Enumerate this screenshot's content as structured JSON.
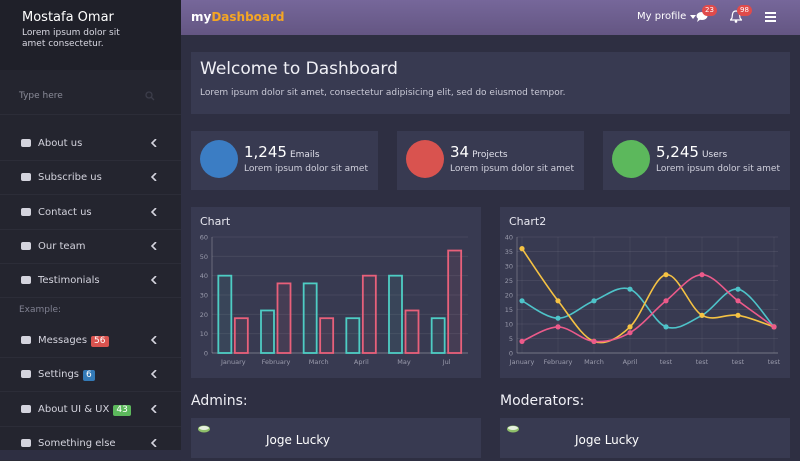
{
  "sidebar": {
    "user": {
      "name": "Mostafa Omar",
      "bio": "Lorem ipsum dolor sit amet consectetur."
    },
    "search_placeholder": "Type here",
    "menu": [
      {
        "label": "About us"
      },
      {
        "label": "Subscribe us"
      },
      {
        "label": "Contact us"
      },
      {
        "label": "Our team"
      },
      {
        "label": "Testimonials"
      }
    ],
    "section_label": "Example:",
    "menu2": [
      {
        "label": "Messages",
        "badge": 56
      },
      {
        "label": "Settings",
        "badge": 6
      },
      {
        "label": "About UI & UX",
        "badge": 43
      },
      {
        "label": "Something else"
      }
    ]
  },
  "topbar": {
    "brand_prefix": "my",
    "brand": "Dashboard",
    "profile": "My profile",
    "messages_badge": 23,
    "notifications_badge": 98
  },
  "welcome": {
    "title": "Welcome to Dashboard",
    "text": "Lorem ipsum dolor sit amet, consectetur adipisicing elit, sed do eiusmod tempor."
  },
  "stats": [
    {
      "value": "1,245",
      "label": "Emails",
      "text": "Lorem ipsum dolor sit amet"
    },
    {
      "value": "34",
      "label": "Projects",
      "text": "Lorem ipsum dolor sit amet"
    },
    {
      "value": "5,245",
      "label": "Users",
      "text": "Lorem ipsum dolor sit amet"
    }
  ],
  "chart_data": [
    {
      "type": "bar",
      "title": "Chart",
      "categories": [
        "January",
        "February",
        "March",
        "April",
        "May",
        "Jul"
      ],
      "series": [
        {
          "color": "#4ecdc4",
          "values": [
            40,
            22,
            36,
            18,
            40,
            18
          ]
        },
        {
          "color": "#e8607a",
          "values": [
            18,
            36,
            18,
            40,
            22,
            53
          ]
        }
      ],
      "ylim": [
        0,
        60
      ],
      "yticks": [
        0,
        10,
        20,
        30,
        40,
        50,
        60
      ],
      "grid": true
    },
    {
      "type": "line",
      "title": "Chart2",
      "categories": [
        "January",
        "February",
        "March",
        "April",
        "test",
        "test",
        "test",
        "test"
      ],
      "series": [
        {
          "color": "#4ec3c9",
          "values": [
            18,
            12,
            18,
            22,
            9,
            13,
            22,
            9
          ]
        },
        {
          "color": "#f5c243",
          "values": [
            36,
            18,
            4,
            9,
            27,
            13,
            13,
            9
          ]
        },
        {
          "color": "#ec5a8a",
          "values": [
            4,
            9,
            4,
            7,
            18,
            27,
            18,
            9
          ]
        }
      ],
      "ylim": [
        0,
        40
      ],
      "yticks": [
        0,
        5,
        10,
        15,
        20,
        25,
        30,
        35,
        40
      ],
      "grid": true
    }
  ],
  "admins": {
    "title": "Admins:",
    "name": "Joge Lucky"
  },
  "moderators": {
    "title": "Moderators:",
    "name": "Joge Lucky"
  }
}
